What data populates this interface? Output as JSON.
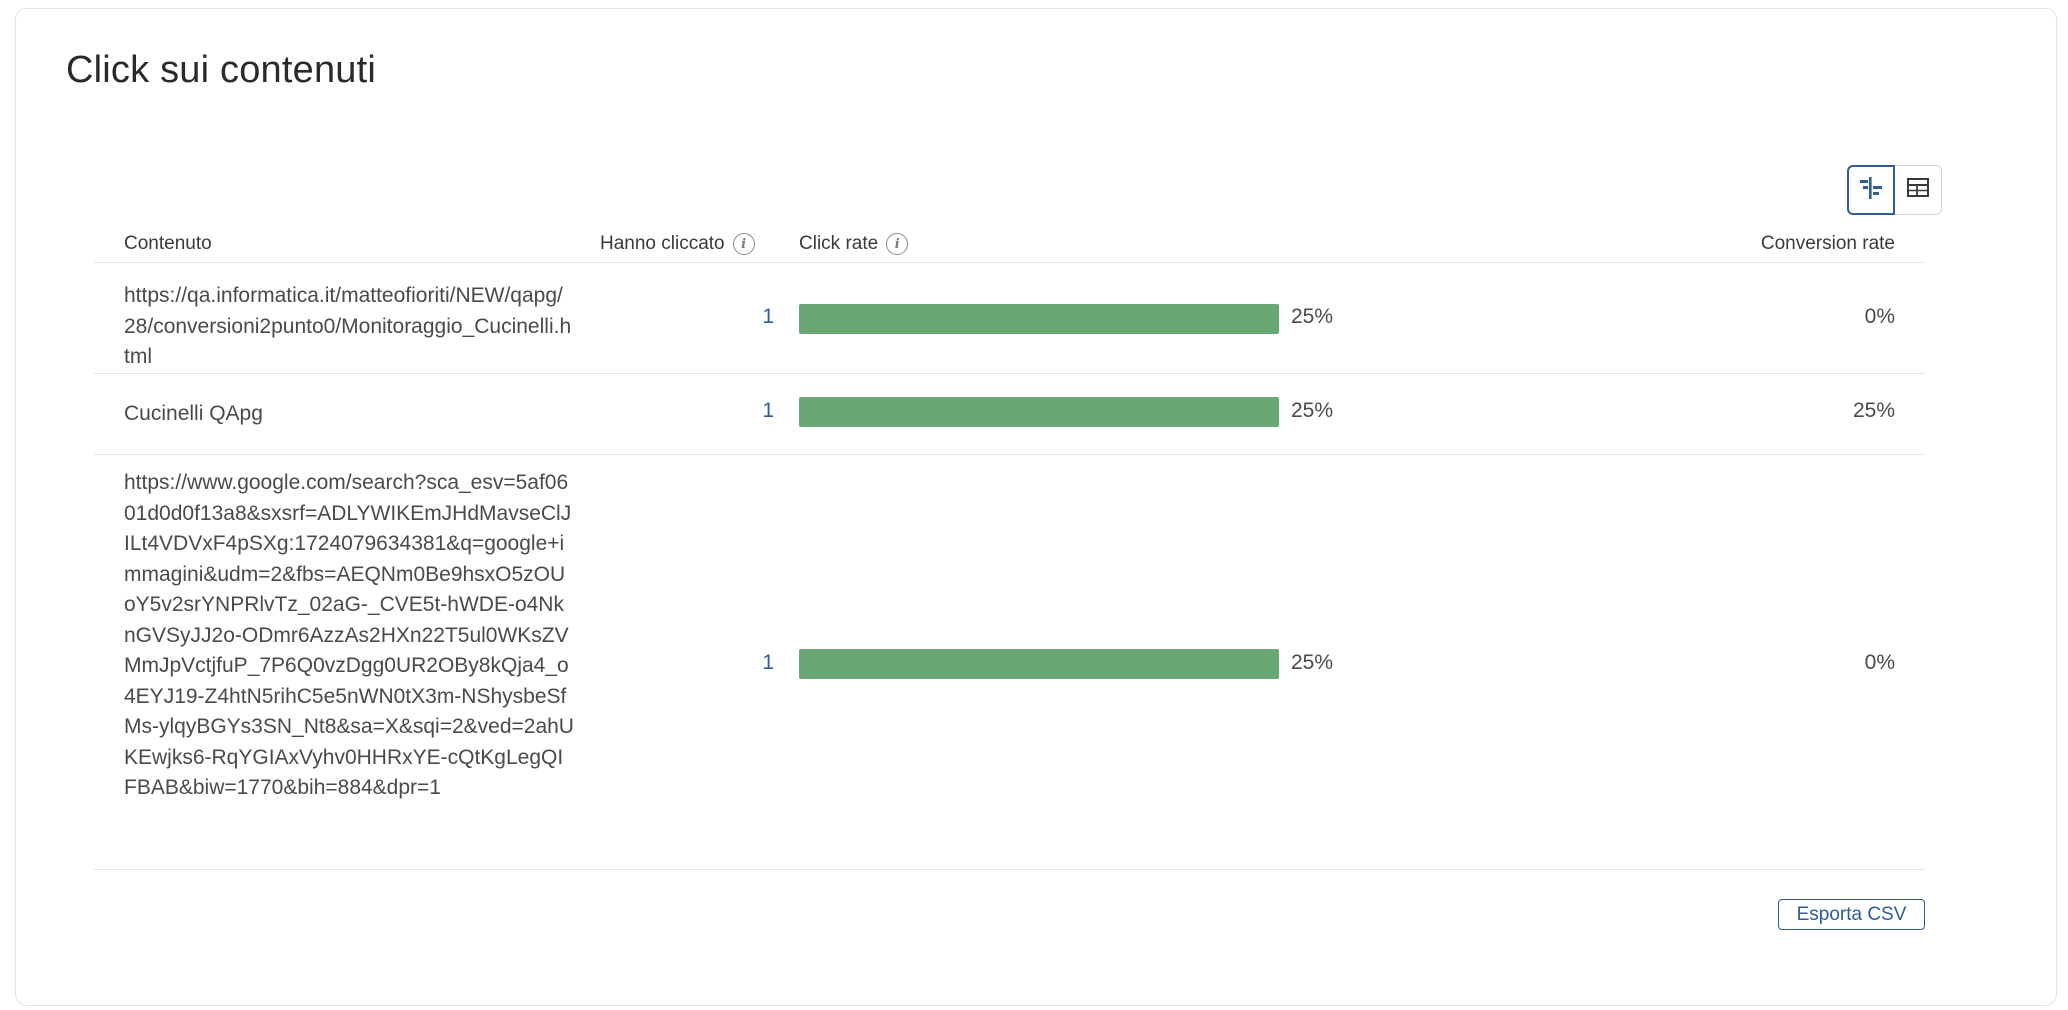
{
  "card": {
    "title": "Click sui contenuti"
  },
  "view_toggle": {
    "options": [
      {
        "name": "bar-view",
        "icon": "bar-chart-icon",
        "active": true
      },
      {
        "name": "table-view",
        "icon": "table-grid-icon",
        "active": false
      }
    ]
  },
  "table": {
    "columns": {
      "content": "Contenuto",
      "clicked": "Hanno cliccato",
      "click_rate": "Click rate",
      "conversion_rate": "Conversion rate"
    },
    "rows": [
      {
        "content": "https://qa.informatica.it/matteofioriti/NEW/qapg/28/conversioni2punto0/Monitoraggio_Cucinelli.html",
        "clicked": "1",
        "click_rate": 0.25,
        "click_rate_label": "25%",
        "conversion_rate": "0%"
      },
      {
        "content": "Cucinelli QApg",
        "clicked": "1",
        "click_rate": 0.25,
        "click_rate_label": "25%",
        "conversion_rate": "25%"
      },
      {
        "content": "https://www.google.com/search?sca_esv=5af0601d0d0f13a8&sxsrf=ADLYWIKEmJHdMavseClJILt4VDVxF4pSXg:1724079634381&q=google+immagini&udm=2&fbs=AEQNm0Be9hsxO5zOUoY5v2srYNPRlvTz_02aG-_CVE5t-hWDE-o4NknGVSyJJ2o-ODmr6AzzAs2HXn22T5ul0WKsZVMmJpVctjfuP_7P6Q0vzDgg0UR2OBy8kQja4_o4EYJ19-Z4htN5rihC5e5nWN0tX3m-NShysbeSfMs-ylqyBGYs3SN_Nt8&sa=X&sqi=2&ved=2ahUKEwjks6-RqYGIAxVyhv0HHRxYE-cQtKgLegQIFBAB&biw=1770&bih=884&dpr=1",
        "clicked": "1",
        "click_rate": 0.25,
        "click_rate_label": "25%",
        "conversion_rate": "0%"
      }
    ]
  },
  "actions": {
    "export_label": "Esporta CSV"
  },
  "colors": {
    "bar": "#69a874",
    "accent": "#2f5d94",
    "border": "#e2e2e2"
  }
}
